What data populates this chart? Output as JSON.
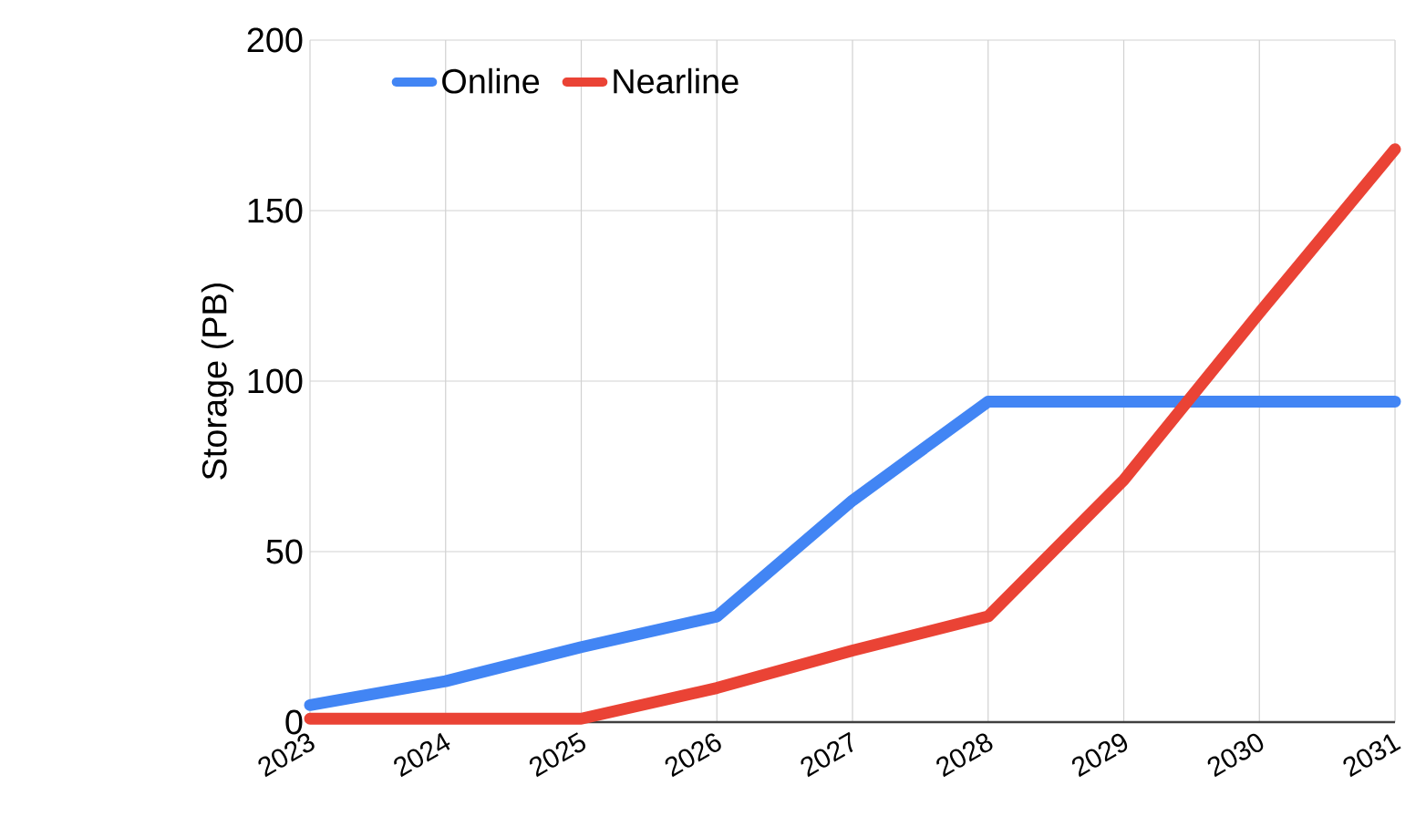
{
  "chart_data": {
    "type": "line",
    "ylabel": "Storage (PB)",
    "categories": [
      "2023",
      "2024",
      "2025",
      "2026",
      "2027",
      "2028",
      "2029",
      "2030",
      "2031"
    ],
    "series": [
      {
        "name": "Online",
        "color": "#4285f4",
        "values": [
          5,
          12,
          22,
          31,
          65,
          94,
          94,
          94,
          94
        ]
      },
      {
        "name": "Nearline",
        "color": "#ea4335",
        "values": [
          1,
          1,
          1,
          10,
          21,
          31,
          71,
          120,
          168
        ]
      }
    ],
    "ylim": [
      0,
      200
    ],
    "yticks": [
      0,
      50,
      100,
      150,
      200
    ],
    "grid": true,
    "legend": "top left"
  }
}
